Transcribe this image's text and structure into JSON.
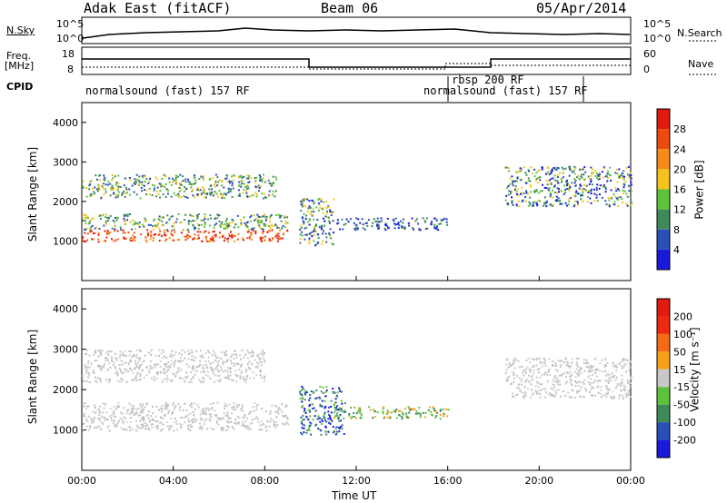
{
  "header": {
    "radar": "Adak East (fitACF)",
    "beam": "Beam 06",
    "date": "05/Apr/2014"
  },
  "summary_panels": {
    "nsky_label": "N.Sky",
    "nsky_ticks": [
      "10^5",
      "10^0"
    ],
    "nsearch_label": "N.Search",
    "nsearch_ticks": [
      "10^5",
      "10^0"
    ],
    "freq_label_line1": "Freq.",
    "freq_label_line2": "[MHz]",
    "freq_ticks": [
      "18",
      "8"
    ],
    "nave_label": "Nave",
    "nave_ticks": [
      "60",
      "0"
    ],
    "cpid_label": "CPID"
  },
  "cpid_segments": [
    {
      "text": "normalsound (fast) 157 RF"
    },
    {
      "text": "rbsp 200 RF"
    },
    {
      "text": "normalsound (fast) 157 RF"
    }
  ],
  "chart_data": [
    {
      "type": "heatmap",
      "name": "power",
      "ylabel": "Slant Range [km]",
      "yticks": [
        "1000",
        "2000",
        "3000",
        "4000"
      ],
      "ylim": [
        0,
        4500
      ],
      "colorbar_label": "Power [dB]",
      "colorbar_ticks": [
        "4",
        "8",
        "12",
        "16",
        "20",
        "24",
        "28"
      ],
      "colorbar_colors": [
        "#1a1adc",
        "#2a4fb8",
        "#3f8a5a",
        "#5cc23b",
        "#f5c21b",
        "#f58a14",
        "#ec4a10",
        "#e31a10"
      ],
      "regions": [
        {
          "x0": 0.0,
          "x1": 9.0,
          "y0": 1000,
          "y1": 1300,
          "level": "high"
        },
        {
          "x0": 0.0,
          "x1": 9.0,
          "y0": 1300,
          "y1": 1700,
          "level": "medium"
        },
        {
          "x0": 0.0,
          "x1": 8.5,
          "y0": 2100,
          "y1": 2700,
          "level": "medium"
        },
        {
          "x0": 9.5,
          "x1": 11.0,
          "y0": 900,
          "y1": 2100,
          "level": "mixed"
        },
        {
          "x0": 11.0,
          "x1": 16.0,
          "y0": 1300,
          "y1": 1600,
          "level": "low"
        },
        {
          "x0": 18.5,
          "x1": 24.0,
          "y0": 1900,
          "y1": 2900,
          "level": "mixed"
        }
      ]
    },
    {
      "type": "heatmap",
      "name": "velocity",
      "ylabel": "Slant Range [km]",
      "yticks": [
        "1000",
        "2000",
        "3000",
        "4000"
      ],
      "ylim": [
        0,
        4500
      ],
      "colorbar_label": "Velocity [m s⁻¹]",
      "colorbar_ticks": [
        "-200",
        "-100",
        "-50",
        "-15",
        "15",
        "50",
        "100",
        "200"
      ],
      "colorbar_colors": [
        "#1a1adc",
        "#2a4fb8",
        "#3f8a5a",
        "#5cc23b",
        "#c8c8c8",
        "#f5a01b",
        "#f56a14",
        "#ec2a10",
        "#e31a10"
      ],
      "regions": [
        {
          "x0": 0.0,
          "x1": 9.0,
          "y0": 1000,
          "y1": 1700,
          "level": "ground"
        },
        {
          "x0": 0.0,
          "x1": 8.0,
          "y0": 2200,
          "y1": 3000,
          "level": "ground"
        },
        {
          "x0": 9.5,
          "x1": 11.5,
          "y0": 900,
          "y1": 2100,
          "level": "toward"
        },
        {
          "x0": 11.0,
          "x1": 16.0,
          "y0": 1300,
          "y1": 1600,
          "level": "slow"
        },
        {
          "x0": 18.5,
          "x1": 24.0,
          "y0": 1800,
          "y1": 2800,
          "level": "ground"
        }
      ]
    }
  ],
  "x_axis": {
    "ticks": [
      "00:00",
      "04:00",
      "08:00",
      "12:00",
      "16:00",
      "20:00",
      "00:00"
    ],
    "label": "Time UT"
  }
}
